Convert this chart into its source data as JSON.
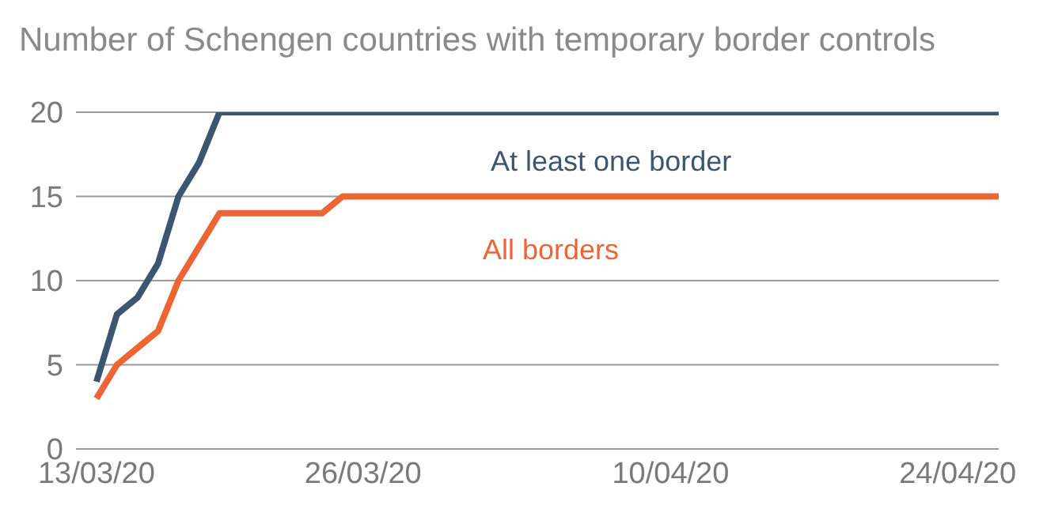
{
  "chart_data": {
    "type": "line",
    "title": "Number of Schengen countries with temporary border controls",
    "series": [
      {
        "name": "At least one border",
        "color": "#3b5670",
        "x": [
          "--03-13",
          "--03-14",
          "--03-15",
          "--03-16",
          "--03-17",
          "--03-18",
          "--03-19",
          "--04-26"
        ],
        "values": [
          4,
          8,
          9,
          11,
          15,
          17,
          20,
          20
        ]
      },
      {
        "name": "All borders",
        "color": "#ec6535",
        "x": [
          "--03-13",
          "--03-14",
          "--03-15",
          "--03-16",
          "--03-17",
          "--03-18",
          "--03-19",
          "--03-24",
          "--03-25",
          "--04-26"
        ],
        "values": [
          3,
          5,
          6,
          7,
          10,
          12,
          14,
          14,
          15,
          15
        ]
      }
    ],
    "xlim": [
      "--03-12",
      "--04-26"
    ],
    "xticks": [
      {
        "value": "--03-13",
        "label": "13/03/20"
      },
      {
        "value": "--03-26",
        "label": "26/03/20"
      },
      {
        "value": "--04-10",
        "label": "10/04/20"
      },
      {
        "value": "--04-24",
        "label": "24/04/20"
      }
    ],
    "ylim": [
      0,
      20
    ],
    "yticks": [
      0,
      5,
      10,
      15,
      20
    ],
    "grid": "y",
    "legend": false,
    "marker": "none",
    "line_style": "solid"
  }
}
